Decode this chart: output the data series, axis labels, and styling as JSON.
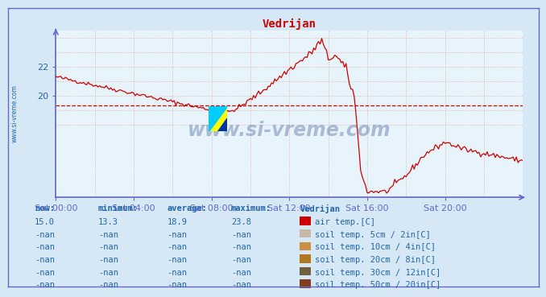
{
  "title": "Vedrijan",
  "title_color": "#cc0000",
  "bg_color": "#d6e8f5",
  "plot_bg_color": "#e8f4fc",
  "grid_color": "#e8a0a0",
  "axis_color": "#6666cc",
  "text_color": "#2266aa",
  "line_color": "#cc0000",
  "dashed_line_color": "#cc0000",
  "dashed_line_value": 19.3,
  "watermark": "www.si-vreme.com",
  "ylim": [
    13.0,
    24.5
  ],
  "yticks": [
    20,
    22
  ],
  "xlabel_labels": [
    "Sat 00:00",
    "Sat 04:00",
    "Sat 08:00",
    "Sat 12:00",
    "Sat 16:00",
    "Sat 20:00"
  ],
  "legend_items": [
    {
      "label": "air temp.[C]",
      "color": "#cc0000"
    },
    {
      "label": "soil temp. 5cm / 2in[C]",
      "color": "#c8b8a8"
    },
    {
      "label": "soil temp. 10cm / 4in[C]",
      "color": "#c89040"
    },
    {
      "label": "soil temp. 20cm / 8in[C]",
      "color": "#b07820"
    },
    {
      "label": "soil temp. 30cm / 12in[C]",
      "color": "#706040"
    },
    {
      "label": "soil temp. 50cm / 20in[C]",
      "color": "#804020"
    }
  ],
  "table_header": [
    "now:",
    "minimum:",
    "average:",
    "maximum:",
    "Vedrijan"
  ],
  "table_rows": [
    [
      "15.0",
      "13.3",
      "18.9",
      "23.8",
      "air temp.[C]"
    ],
    [
      "-nan",
      "-nan",
      "-nan",
      "-nan",
      "soil temp. 5cm / 2in[C]"
    ],
    [
      "-nan",
      "-nan",
      "-nan",
      "-nan",
      "soil temp. 10cm / 4in[C]"
    ],
    [
      "-nan",
      "-nan",
      "-nan",
      "-nan",
      "soil temp. 20cm / 8in[C]"
    ],
    [
      "-nan",
      "-nan",
      "-nan",
      "-nan",
      "soil temp. 30cm / 12in[C]"
    ],
    [
      "-nan",
      "-nan",
      "-nan",
      "-nan",
      "soil temp. 50cm / 20in[C]"
    ]
  ]
}
